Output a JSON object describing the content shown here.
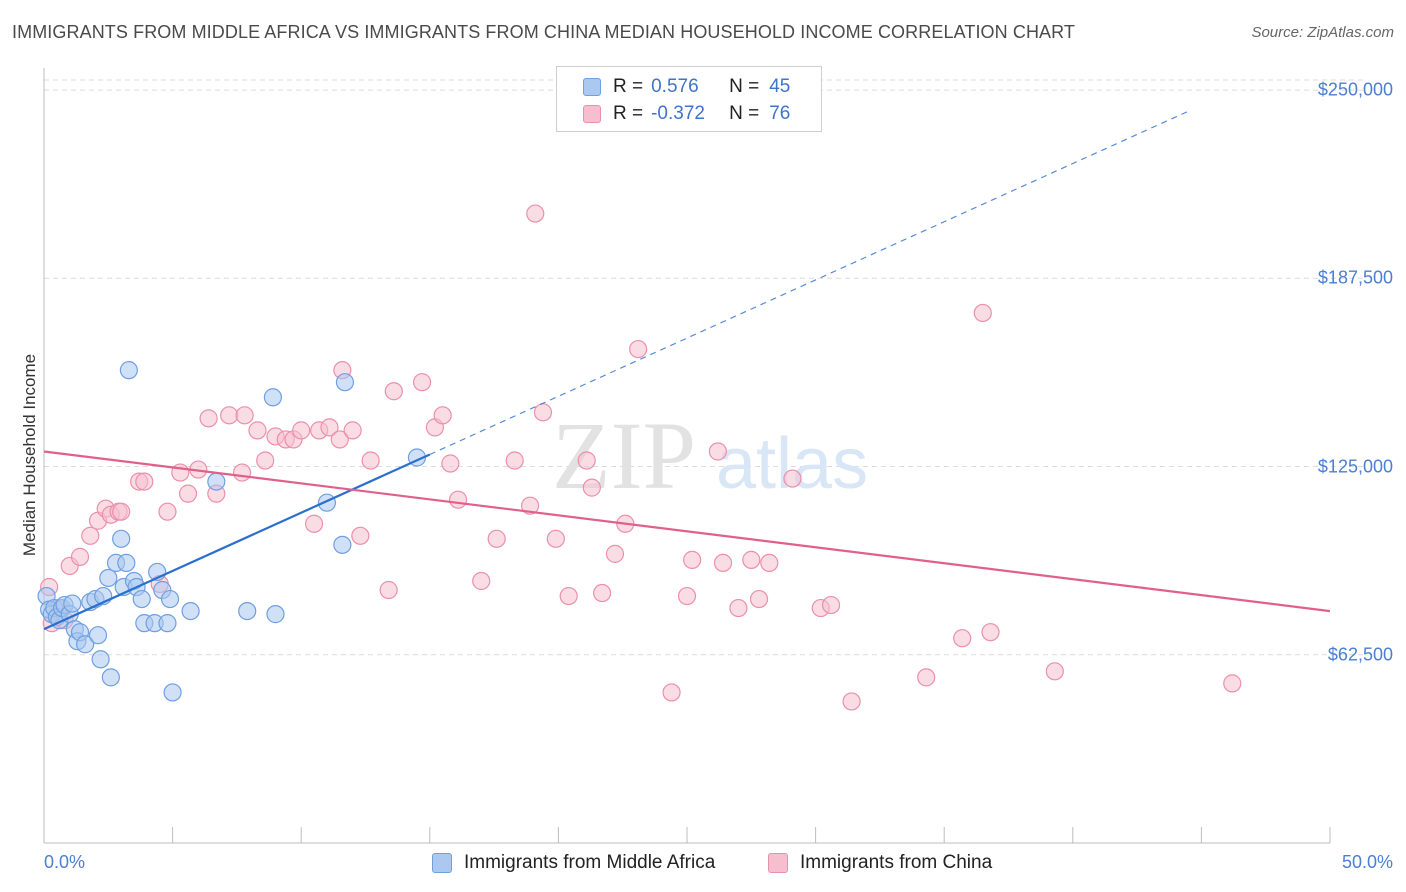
{
  "title": "IMMIGRANTS FROM MIDDLE AFRICA VS IMMIGRANTS FROM CHINA MEDIAN HOUSEHOLD INCOME CORRELATION CHART",
  "source": "Source: ZipAtlas.com",
  "watermark": {
    "zip": "ZIP",
    "atlas": "atlas"
  },
  "colors": {
    "blue_fill": "#aac8f0",
    "blue_stroke": "#6f9fe0",
    "blue_line": "#2a6fce",
    "pink_fill": "#f6bfd0",
    "pink_stroke": "#ec8fac",
    "pink_line": "#e0608c",
    "tick_text": "#4a7fd4",
    "grid": "#dcdcdc"
  },
  "legend": {
    "rows": [
      {
        "r_label": "R =",
        "r_value": "0.576",
        "n_label": "N =",
        "n_value": "45"
      },
      {
        "r_label": "R =",
        "r_value": "-0.372",
        "n_label": "N =",
        "n_value": "76"
      }
    ]
  },
  "chart_data": {
    "type": "scatter",
    "title": "IMMIGRANTS FROM MIDDLE AFRICA VS IMMIGRANTS FROM CHINA MEDIAN HOUSEHOLD INCOME CORRELATION CHART",
    "xlabel": "",
    "ylabel": "Median Household Income",
    "xlim": [
      0,
      50
    ],
    "ylim": [
      0,
      256000
    ],
    "x_tick_labels": [
      "0.0%",
      "50.0%"
    ],
    "y_ticks": [
      62500,
      125000,
      187500,
      250000
    ],
    "y_tick_labels": [
      "$62,500",
      "$125,000",
      "$187,500",
      "$250,000"
    ],
    "series": [
      {
        "name": "Immigrants from Middle Africa",
        "r": 0.576,
        "n": 45,
        "trend": {
          "x0": 0,
          "y0": 71000,
          "x1": 15,
          "y1": 129000,
          "dash_to_x": 44.5,
          "dash_to_y": 243000
        },
        "points": [
          [
            0.1,
            82000
          ],
          [
            0.2,
            77500
          ],
          [
            0.3,
            76000
          ],
          [
            0.4,
            78000
          ],
          [
            0.5,
            75000
          ],
          [
            0.6,
            74000
          ],
          [
            0.7,
            78000
          ],
          [
            0.8,
            79000
          ],
          [
            1.0,
            76000
          ],
          [
            1.1,
            79500
          ],
          [
            1.2,
            71000
          ],
          [
            1.3,
            67000
          ],
          [
            1.4,
            70000
          ],
          [
            1.6,
            66000
          ],
          [
            1.8,
            80000
          ],
          [
            2.0,
            81000
          ],
          [
            2.1,
            69000
          ],
          [
            2.2,
            61000
          ],
          [
            2.3,
            82000
          ],
          [
            2.5,
            88000
          ],
          [
            2.6,
            55000
          ],
          [
            2.8,
            93000
          ],
          [
            3.0,
            101000
          ],
          [
            3.1,
            85000
          ],
          [
            3.2,
            93000
          ],
          [
            3.3,
            157000
          ],
          [
            3.5,
            87000
          ],
          [
            3.6,
            85000
          ],
          [
            3.8,
            81000
          ],
          [
            3.9,
            73000
          ],
          [
            4.3,
            73000
          ],
          [
            4.4,
            90000
          ],
          [
            4.6,
            84000
          ],
          [
            4.8,
            73000
          ],
          [
            4.9,
            81000
          ],
          [
            5.0,
            50000
          ],
          [
            5.7,
            77000
          ],
          [
            6.7,
            120000
          ],
          [
            7.9,
            77000
          ],
          [
            8.9,
            148000
          ],
          [
            9.0,
            76000
          ],
          [
            11.0,
            113000
          ],
          [
            11.6,
            99000
          ],
          [
            11.7,
            153000
          ],
          [
            14.5,
            128000
          ]
        ]
      },
      {
        "name": "Immigrants from China",
        "r": -0.372,
        "n": 76,
        "trend": {
          "x0": 0,
          "y0": 130000,
          "x1": 50,
          "y1": 77000
        },
        "points": [
          [
            0.2,
            85000
          ],
          [
            0.3,
            73000
          ],
          [
            0.6,
            78000
          ],
          [
            0.8,
            74000
          ],
          [
            1.0,
            92000
          ],
          [
            1.4,
            95000
          ],
          [
            1.8,
            102000
          ],
          [
            2.1,
            107000
          ],
          [
            2.4,
            111000
          ],
          [
            2.6,
            109000
          ],
          [
            2.9,
            110000
          ],
          [
            3.0,
            110000
          ],
          [
            3.7,
            120000
          ],
          [
            3.9,
            120000
          ],
          [
            4.5,
            86000
          ],
          [
            4.8,
            110000
          ],
          [
            5.3,
            123000
          ],
          [
            5.6,
            116000
          ],
          [
            6.0,
            124000
          ],
          [
            6.4,
            141000
          ],
          [
            6.7,
            116000
          ],
          [
            7.2,
            142000
          ],
          [
            7.7,
            123000
          ],
          [
            7.8,
            142000
          ],
          [
            8.3,
            137000
          ],
          [
            8.6,
            127000
          ],
          [
            9.0,
            135000
          ],
          [
            9.4,
            134000
          ],
          [
            9.7,
            134000
          ],
          [
            10.0,
            137000
          ],
          [
            10.5,
            106000
          ],
          [
            10.7,
            137000
          ],
          [
            11.1,
            138000
          ],
          [
            11.5,
            134000
          ],
          [
            11.6,
            157000
          ],
          [
            12.0,
            137000
          ],
          [
            12.3,
            102000
          ],
          [
            12.7,
            127000
          ],
          [
            13.4,
            84000
          ],
          [
            13.6,
            150000
          ],
          [
            14.7,
            153000
          ],
          [
            15.2,
            138000
          ],
          [
            15.5,
            142000
          ],
          [
            15.8,
            126000
          ],
          [
            16.1,
            114000
          ],
          [
            17.0,
            87000
          ],
          [
            17.6,
            101000
          ],
          [
            18.3,
            127000
          ],
          [
            18.9,
            112000
          ],
          [
            19.1,
            209000
          ],
          [
            19.4,
            143000
          ],
          [
            19.9,
            101000
          ],
          [
            20.4,
            82000
          ],
          [
            21.1,
            127000
          ],
          [
            21.3,
            118000
          ],
          [
            21.7,
            83000
          ],
          [
            22.2,
            96000
          ],
          [
            22.6,
            106000
          ],
          [
            23.1,
            164000
          ],
          [
            24.4,
            50000
          ],
          [
            25.0,
            82000
          ],
          [
            25.2,
            94000
          ],
          [
            26.2,
            130000
          ],
          [
            26.4,
            93000
          ],
          [
            27.0,
            78000
          ],
          [
            27.5,
            94000
          ],
          [
            27.8,
            81000
          ],
          [
            28.2,
            93000
          ],
          [
            29.1,
            121000
          ],
          [
            30.2,
            78000
          ],
          [
            30.6,
            79000
          ],
          [
            31.4,
            47000
          ],
          [
            34.3,
            55000
          ],
          [
            35.7,
            68000
          ],
          [
            36.5,
            176000
          ],
          [
            36.8,
            70000
          ],
          [
            39.3,
            57000
          ],
          [
            46.2,
            53000
          ]
        ]
      }
    ]
  },
  "bottom_legend": {
    "items": [
      {
        "label": "Immigrants from Middle Africa"
      },
      {
        "label": "Immigrants from China"
      }
    ]
  }
}
